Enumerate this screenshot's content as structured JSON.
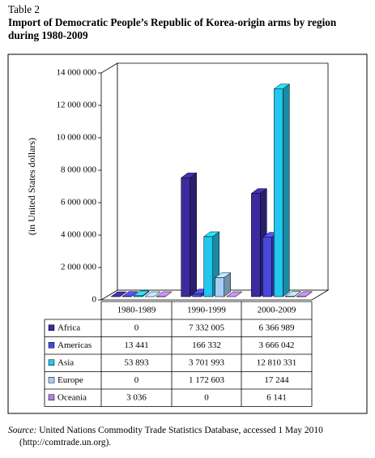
{
  "table_label": "Table 2",
  "chart_data": {
    "type": "bar3d",
    "title": "Import of Democratic People’s Republic of Korea-origin arms by region during 1980-2009",
    "y_label": "(in United States dollars)",
    "categories": [
      "1980-1989",
      "1990-1999",
      "2000-2009"
    ],
    "series": [
      {
        "name": "Africa",
        "color": "#3b2b9c",
        "values": [
          0,
          7332005,
          6366989
        ],
        "value_labels": [
          "0",
          "7 332 005",
          "6 366 989"
        ]
      },
      {
        "name": "Americas",
        "color": "#4848dc",
        "values": [
          13441,
          166332,
          3666042
        ],
        "value_labels": [
          "13 441",
          "166 332",
          "3 666 042"
        ]
      },
      {
        "name": "Asia",
        "color": "#22c6ee",
        "values": [
          53893,
          3701993,
          12810331
        ],
        "value_labels": [
          "53 893",
          "3 701 993",
          "12 810 331"
        ]
      },
      {
        "name": "Europe",
        "color": "#a6cdf6",
        "values": [
          0,
          1172603,
          17244
        ],
        "value_labels": [
          "0",
          "1 172 603",
          "17 244"
        ]
      },
      {
        "name": "Oceania",
        "color": "#b47ee0",
        "values": [
          3036,
          0,
          6141
        ],
        "value_labels": [
          "3 036",
          "0",
          "6 141"
        ]
      }
    ],
    "ylim": [
      0,
      14000000
    ],
    "yticks": [
      0,
      {
        "value": 2000000,
        "label": "2 000 000"
      },
      {
        "value": 4000000,
        "label": "4 000 000"
      },
      {
        "value": 6000000,
        "label": "6 000 000"
      },
      {
        "value": 8000000,
        "label": "8 000 000"
      },
      {
        "value": 10000000,
        "label": "10 000 000"
      },
      {
        "value": 12000000,
        "label": "12 000 000"
      },
      {
        "value": 14000000,
        "label": "14 000 000"
      }
    ]
  },
  "source_label": "Source:",
  "source_text": " United Nations Commodity Trade Statistics Database, accessed 1 May 2010 (http://comtrade.un.org)."
}
